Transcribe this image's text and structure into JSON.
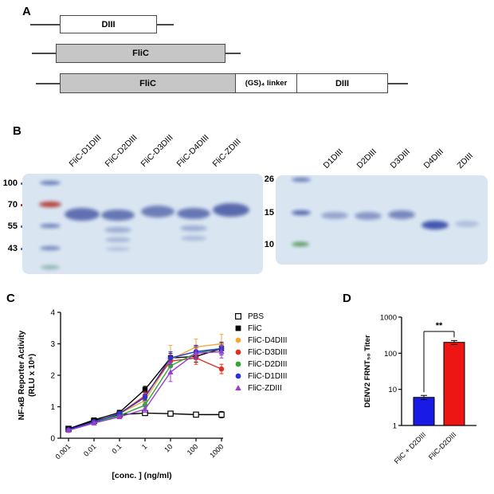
{
  "panels": {
    "a": {
      "label": "A",
      "construct1_box": "DIII",
      "construct2_box": "FliC",
      "construct3_box1": "FliC",
      "construct3_box2": "(GS)₄ linker",
      "construct3_box3": "DIII"
    },
    "b": {
      "label": "B",
      "left_gel": {
        "lane_labels": [
          "FliC-D1DIII",
          "FliC-D2DIII",
          "FliC-D3DIII",
          "FliC-D4DIII",
          "FliC-ZDIII"
        ],
        "markers": [
          "100",
          "70",
          "55",
          "43"
        ]
      },
      "right_gel": {
        "lane_labels": [
          "D1DIII",
          "D2DIII",
          "D3DIII",
          "D4DIII",
          "ZDIII"
        ],
        "markers": [
          "26",
          "15",
          "10"
        ]
      }
    },
    "c": {
      "label": "C"
    },
    "d": {
      "label": "D"
    }
  },
  "chart_data": [
    {
      "type": "line",
      "xlabel": "[conc. ] (ng/ml)",
      "ylabel_line1": "NF-κB Reporter Activity",
      "ylabel_line2": "(RLU x 10⁶)",
      "x_categories": [
        "0.001",
        "0.01",
        "0.1",
        "1",
        "10",
        "100",
        "1000"
      ],
      "x_scale": "log-categorical",
      "ylim": [
        0,
        4
      ],
      "yticks": [
        0,
        1,
        2,
        3,
        4
      ],
      "legend_position": "right",
      "series": [
        {
          "name": "PBS",
          "color": "#000000",
          "marker": "square-open",
          "values": [
            0.3,
            0.55,
            0.75,
            0.8,
            0.78,
            0.75,
            0.75
          ],
          "errors": [
            0.04,
            0.04,
            0.04,
            0.05,
            0.05,
            0.06,
            0.1
          ]
        },
        {
          "name": "FliC",
          "color": "#000000",
          "marker": "square",
          "values": [
            0.3,
            0.58,
            0.82,
            1.55,
            2.55,
            2.6,
            2.85
          ],
          "errors": [
            0.04,
            0.05,
            0.06,
            0.1,
            0.15,
            0.18,
            0.15
          ]
        },
        {
          "name": "FliC-D4DIII",
          "color": "#F2A93B",
          "marker": "circle",
          "values": [
            0.25,
            0.52,
            0.78,
            1.2,
            2.5,
            2.9,
            3.0
          ],
          "errors": [
            0.04,
            0.05,
            0.06,
            0.1,
            0.45,
            0.25,
            0.3
          ]
        },
        {
          "name": "FliC-D3DIII",
          "color": "#E03020",
          "marker": "circle",
          "values": [
            0.25,
            0.52,
            0.78,
            1.35,
            2.45,
            2.55,
            2.2
          ],
          "errors": [
            0.04,
            0.05,
            0.06,
            0.12,
            0.2,
            0.2,
            0.15
          ]
        },
        {
          "name": "FliC-D2DIII",
          "color": "#2EA836",
          "marker": "circle",
          "values": [
            0.25,
            0.5,
            0.72,
            1.05,
            2.3,
            2.7,
            2.85
          ],
          "errors": [
            0.04,
            0.05,
            0.06,
            0.1,
            0.25,
            0.2,
            0.2
          ]
        },
        {
          "name": "FliC-D1DIII",
          "color": "#2B35CF",
          "marker": "circle",
          "values": [
            0.27,
            0.52,
            0.78,
            1.3,
            2.55,
            2.75,
            2.85
          ],
          "errors": [
            0.04,
            0.05,
            0.06,
            0.1,
            0.2,
            0.2,
            0.2
          ]
        },
        {
          "name": "FliC-ZDIII",
          "color": "#9B3FD1",
          "marker": "triangle",
          "values": [
            0.25,
            0.48,
            0.68,
            0.92,
            2.1,
            2.7,
            2.75
          ],
          "errors": [
            0.04,
            0.05,
            0.06,
            0.1,
            0.3,
            0.2,
            0.2
          ]
        }
      ]
    },
    {
      "type": "bar",
      "ylabel": "DENV2 FRNT₅₀ Titer",
      "categories": [
        "FliC + D2DIII",
        "FliC-D2DIII"
      ],
      "values": [
        6,
        200
      ],
      "errors": [
        0.8,
        25
      ],
      "bar_colors": [
        "#1A1AE6",
        "#EE1515"
      ],
      "yscale": "log",
      "ylim": [
        1,
        1000
      ],
      "yticks": [
        1,
        10,
        100,
        1000
      ],
      "significance": "**"
    }
  ]
}
